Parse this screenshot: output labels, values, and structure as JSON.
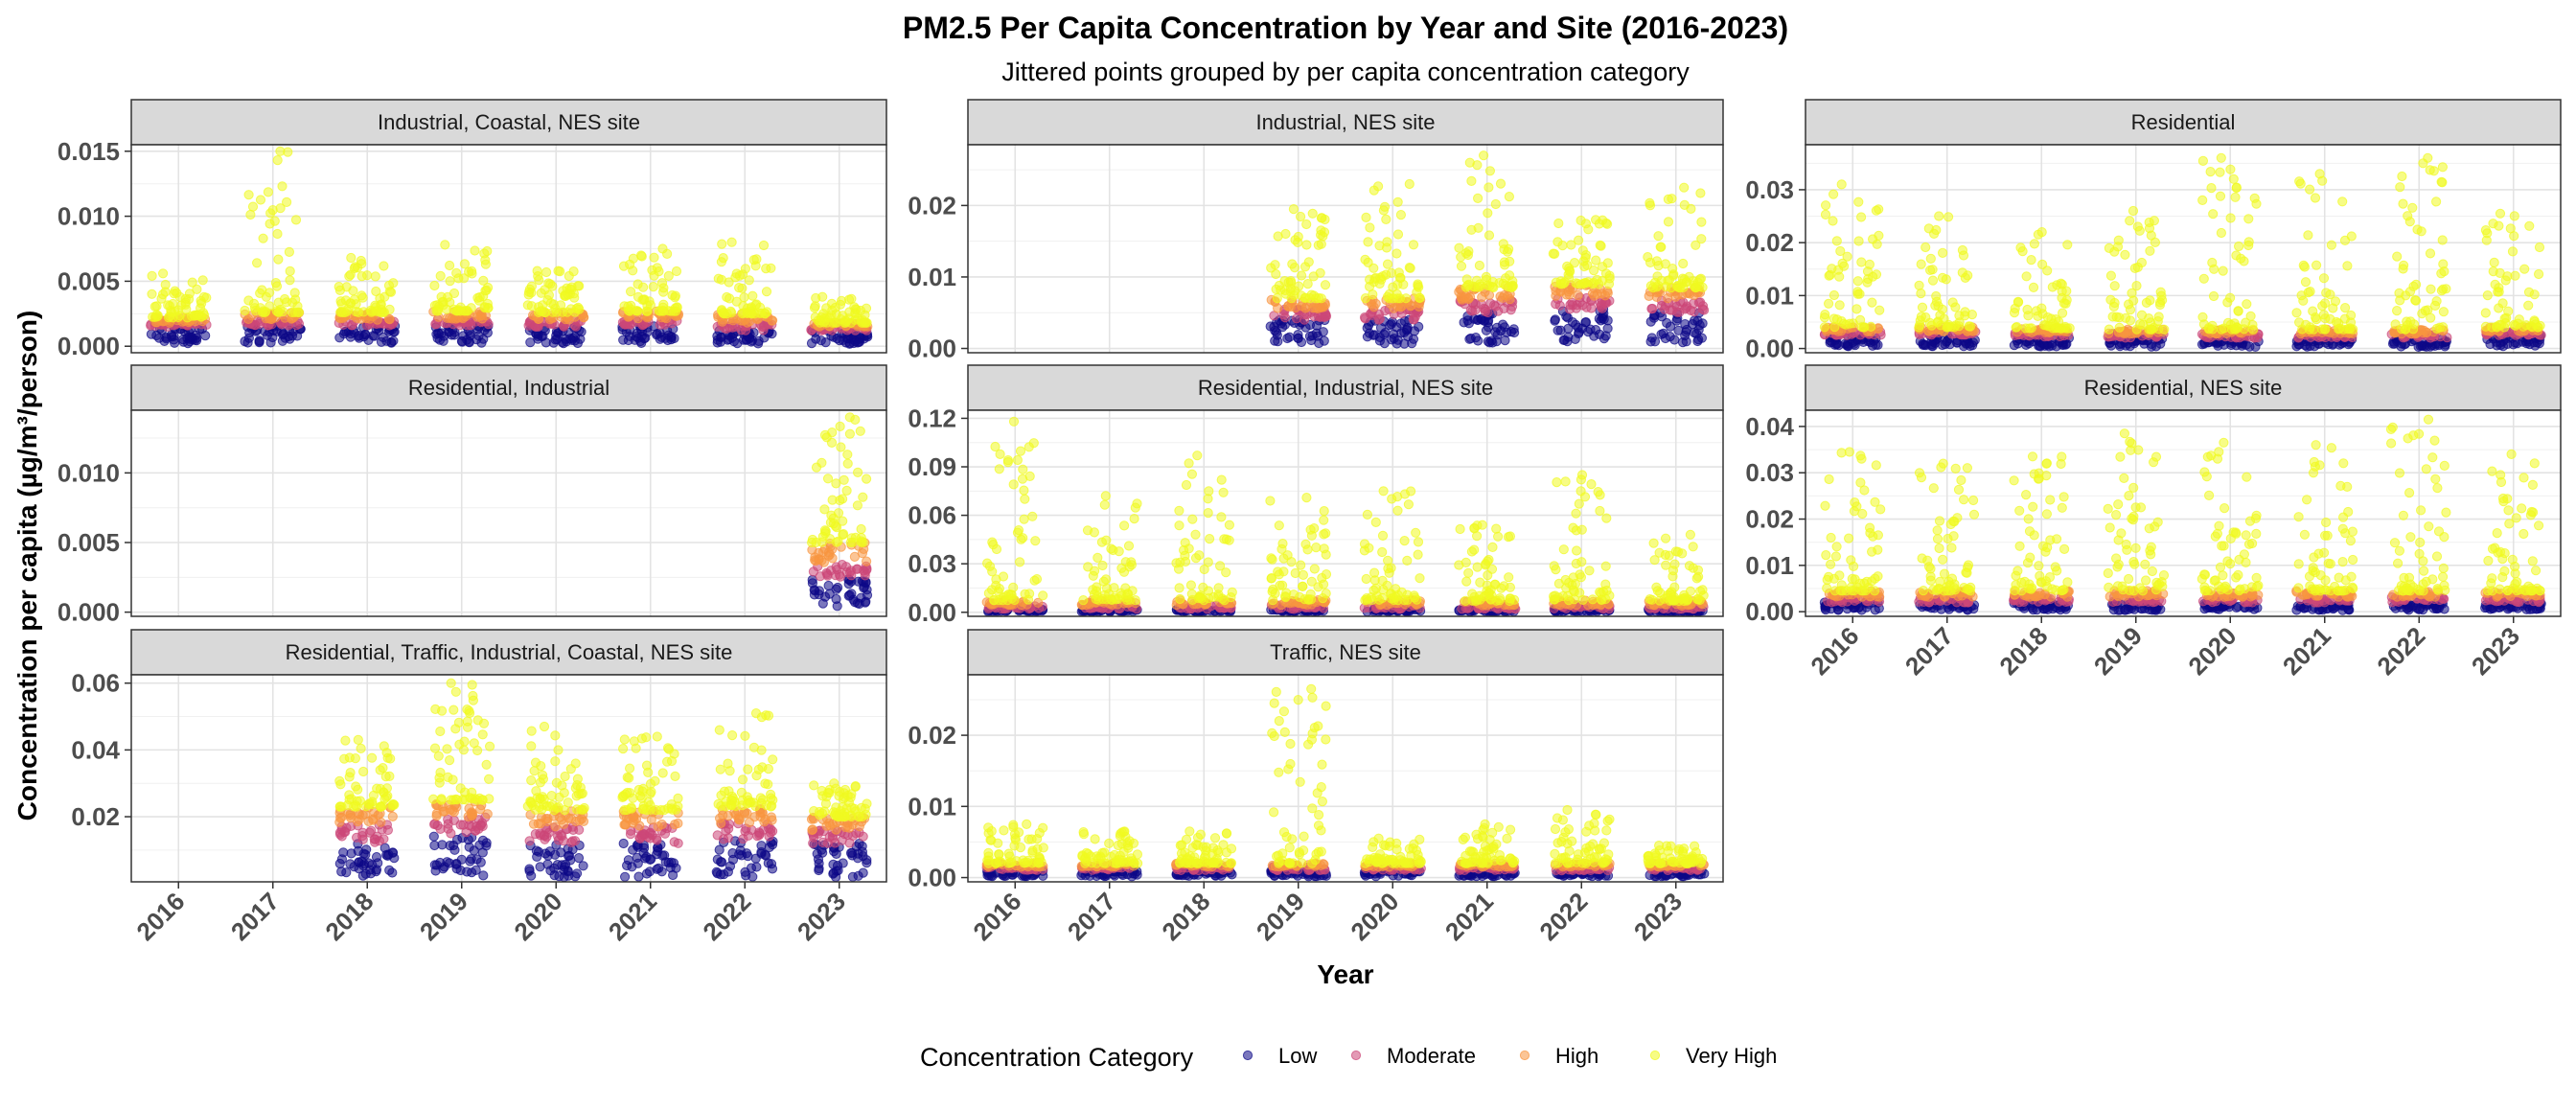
{
  "chart_data": {
    "type": "scatter",
    "title": "PM2.5 Per Capita Concentration by Year and Site (2016-2023)",
    "subtitle": "Jittered points grouped by per capita concentration category",
    "xlabel": "Year",
    "ylabel": "Concentration per capita (µg/m³/person)",
    "x_categories": [
      "2016",
      "2017",
      "2018",
      "2019",
      "2020",
      "2021",
      "2022",
      "2023"
    ],
    "grid": true,
    "legend": {
      "title": "Concentration Category",
      "position": "bottom",
      "entries": [
        {
          "name": "Low",
          "color": "#0d0887"
        },
        {
          "name": "Moderate",
          "color": "#cc4778"
        },
        {
          "name": "High",
          "color": "#f89540"
        },
        {
          "name": "Very High",
          "color": "#f0f921"
        }
      ]
    },
    "panels": [
      {
        "name": "Industrial, Coastal, NES site",
        "ylim": [
          -0.0005,
          0.0155
        ],
        "y_ticks": [
          0,
          0.005,
          0.01,
          0.015
        ],
        "y_tick_labels": [
          "0.000",
          "0.005",
          "0.010",
          "0.015"
        ],
        "x_labels_shown": false,
        "years": [
          {
            "year": "2016",
            "low": 0.0015,
            "moderate": 0.0018,
            "high": 0.0022,
            "max": 0.0056
          },
          {
            "year": "2017",
            "low": 0.0016,
            "moderate": 0.002,
            "high": 0.0026,
            "max": 0.015
          },
          {
            "year": "2018",
            "low": 0.0016,
            "moderate": 0.002,
            "high": 0.0026,
            "max": 0.0068
          },
          {
            "year": "2019",
            "low": 0.0016,
            "moderate": 0.0021,
            "high": 0.0027,
            "max": 0.0078
          },
          {
            "year": "2020",
            "low": 0.0015,
            "moderate": 0.002,
            "high": 0.0026,
            "max": 0.0058
          },
          {
            "year": "2021",
            "low": 0.0016,
            "moderate": 0.0021,
            "high": 0.0027,
            "max": 0.0075
          },
          {
            "year": "2022",
            "low": 0.0012,
            "moderate": 0.0018,
            "high": 0.0025,
            "max": 0.008
          },
          {
            "year": "2023",
            "low": 0.0012,
            "moderate": 0.0015,
            "high": 0.0018,
            "max": 0.0038
          }
        ]
      },
      {
        "name": "Industrial, NES site",
        "ylim": [
          -0.0006,
          0.0285
        ],
        "y_ticks": [
          0,
          0.01,
          0.02
        ],
        "y_tick_labels": [
          "0.00",
          "0.01",
          "0.02"
        ],
        "x_labels_shown": false,
        "years": [
          {
            "year": "2019",
            "low": 0.004,
            "moderate": 0.0055,
            "high": 0.007,
            "max": 0.0195
          },
          {
            "year": "2020",
            "low": 0.004,
            "moderate": 0.0055,
            "high": 0.007,
            "max": 0.023
          },
          {
            "year": "2021",
            "low": 0.005,
            "moderate": 0.0068,
            "high": 0.0085,
            "max": 0.027
          },
          {
            "year": "2022",
            "low": 0.0055,
            "moderate": 0.0072,
            "high": 0.009,
            "max": 0.018
          },
          {
            "year": "2023",
            "low": 0.005,
            "moderate": 0.0068,
            "high": 0.0085,
            "max": 0.0225
          }
        ]
      },
      {
        "name": "Residential",
        "ylim": [
          -0.0008,
          0.0385
        ],
        "y_ticks": [
          0,
          0.01,
          0.02,
          0.03
        ],
        "y_tick_labels": [
          "0.00",
          "0.01",
          "0.02",
          "0.03"
        ],
        "x_labels_shown": false,
        "years": [
          {
            "year": "2016",
            "low": 0.0025,
            "moderate": 0.0032,
            "high": 0.004,
            "max": 0.031
          },
          {
            "year": "2017",
            "low": 0.0025,
            "moderate": 0.0032,
            "high": 0.004,
            "max": 0.025
          },
          {
            "year": "2018",
            "low": 0.0022,
            "moderate": 0.003,
            "high": 0.0038,
            "max": 0.022
          },
          {
            "year": "2019",
            "low": 0.002,
            "moderate": 0.0028,
            "high": 0.0036,
            "max": 0.026
          },
          {
            "year": "2020",
            "low": 0.002,
            "moderate": 0.0028,
            "high": 0.0036,
            "max": 0.036
          },
          {
            "year": "2021",
            "low": 0.002,
            "moderate": 0.0028,
            "high": 0.0036,
            "max": 0.033
          },
          {
            "year": "2022",
            "low": 0.002,
            "moderate": 0.0028,
            "high": 0.0036,
            "max": 0.036
          },
          {
            "year": "2023",
            "low": 0.0025,
            "moderate": 0.0032,
            "high": 0.004,
            "max": 0.0255
          }
        ]
      },
      {
        "name": "Residential, Industrial",
        "ylim": [
          -0.0003,
          0.0145
        ],
        "y_ticks": [
          0,
          0.005,
          0.01
        ],
        "y_tick_labels": [
          "0.000",
          "0.005",
          "0.010"
        ],
        "x_labels_shown": false,
        "years": [
          {
            "year": "2023",
            "low": 0.0025,
            "moderate": 0.0035,
            "high": 0.005,
            "max": 0.014
          }
        ]
      },
      {
        "name": "Residential, Industrial, NES site",
        "ylim": [
          -0.0025,
          0.125
        ],
        "y_ticks": [
          0,
          0.03,
          0.06,
          0.09,
          0.12
        ],
        "y_tick_labels": [
          "0.00",
          "0.03",
          "0.06",
          "0.09",
          "0.12"
        ],
        "x_labels_shown": false,
        "years": [
          {
            "year": "2016",
            "low": 0.002,
            "moderate": 0.0045,
            "high": 0.0075,
            "max": 0.118
          },
          {
            "year": "2017",
            "low": 0.002,
            "moderate": 0.0045,
            "high": 0.0075,
            "max": 0.072
          },
          {
            "year": "2018",
            "low": 0.002,
            "moderate": 0.0045,
            "high": 0.0075,
            "max": 0.097
          },
          {
            "year": "2019",
            "low": 0.002,
            "moderate": 0.0045,
            "high": 0.0075,
            "max": 0.071
          },
          {
            "year": "2020",
            "low": 0.002,
            "moderate": 0.0045,
            "high": 0.0075,
            "max": 0.075
          },
          {
            "year": "2021",
            "low": 0.002,
            "moderate": 0.004,
            "high": 0.007,
            "max": 0.054
          },
          {
            "year": "2022",
            "low": 0.002,
            "moderate": 0.0045,
            "high": 0.0075,
            "max": 0.085
          },
          {
            "year": "2023",
            "low": 0.002,
            "moderate": 0.004,
            "high": 0.007,
            "max": 0.048
          }
        ]
      },
      {
        "name": "Residential, NES site",
        "ylim": [
          -0.001,
          0.0435
        ],
        "y_ticks": [
          0,
          0.01,
          0.02,
          0.03,
          0.04
        ],
        "y_tick_labels": [
          "0.00",
          "0.01",
          "0.02",
          "0.03",
          "0.04"
        ],
        "x_labels_shown": true,
        "years": [
          {
            "year": "2016",
            "low": 0.002,
            "moderate": 0.0032,
            "high": 0.0045,
            "max": 0.0345
          },
          {
            "year": "2017",
            "low": 0.002,
            "moderate": 0.0032,
            "high": 0.0045,
            "max": 0.032
          },
          {
            "year": "2018",
            "low": 0.002,
            "moderate": 0.0032,
            "high": 0.0045,
            "max": 0.0335
          },
          {
            "year": "2019",
            "low": 0.002,
            "moderate": 0.0032,
            "high": 0.0045,
            "max": 0.0385
          },
          {
            "year": "2020",
            "low": 0.002,
            "moderate": 0.0032,
            "high": 0.0045,
            "max": 0.0365
          },
          {
            "year": "2021",
            "low": 0.002,
            "moderate": 0.0032,
            "high": 0.0045,
            "max": 0.036
          },
          {
            "year": "2022",
            "low": 0.002,
            "moderate": 0.0032,
            "high": 0.0045,
            "max": 0.0415
          },
          {
            "year": "2023",
            "low": 0.002,
            "moderate": 0.0032,
            "high": 0.0045,
            "max": 0.034
          }
        ]
      },
      {
        "name": "Residential, Traffic, Industrial, Coastal, NES site",
        "ylim": [
          0.0005,
          0.0625
        ],
        "y_ticks": [
          0.02,
          0.04,
          0.06
        ],
        "y_tick_labels": [
          "0.02",
          "0.04",
          "0.06"
        ],
        "x_labels_shown": true,
        "years": [
          {
            "year": "2018",
            "low": 0.012,
            "moderate": 0.018,
            "high": 0.023,
            "max": 0.043
          },
          {
            "year": "2019",
            "low": 0.015,
            "moderate": 0.02,
            "high": 0.025,
            "max": 0.06
          },
          {
            "year": "2020",
            "low": 0.012,
            "moderate": 0.017,
            "high": 0.022,
            "max": 0.047
          },
          {
            "year": "2021",
            "low": 0.012,
            "moderate": 0.017,
            "high": 0.022,
            "max": 0.044
          },
          {
            "year": "2022",
            "low": 0.013,
            "moderate": 0.018,
            "high": 0.023,
            "max": 0.051
          },
          {
            "year": "2023",
            "low": 0.012,
            "moderate": 0.016,
            "high": 0.02,
            "max": 0.03
          }
        ]
      },
      {
        "name": "Traffic, NES site",
        "ylim": [
          -0.0006,
          0.0285
        ],
        "y_ticks": [
          0,
          0.01,
          0.02
        ],
        "y_tick_labels": [
          "0.00",
          "0.01",
          "0.02"
        ],
        "x_labels_shown": true,
        "years": [
          {
            "year": "2016",
            "low": 0.001,
            "moderate": 0.0015,
            "high": 0.002,
            "max": 0.0075
          },
          {
            "year": "2017",
            "low": 0.001,
            "moderate": 0.0015,
            "high": 0.002,
            "max": 0.0065
          },
          {
            "year": "2018",
            "low": 0.001,
            "moderate": 0.0015,
            "high": 0.002,
            "max": 0.0065
          },
          {
            "year": "2019",
            "low": 0.001,
            "moderate": 0.0015,
            "high": 0.002,
            "max": 0.0265
          },
          {
            "year": "2020",
            "low": 0.001,
            "moderate": 0.0015,
            "high": 0.002,
            "max": 0.0055
          },
          {
            "year": "2021",
            "low": 0.001,
            "moderate": 0.0015,
            "high": 0.002,
            "max": 0.0075
          },
          {
            "year": "2022",
            "low": 0.001,
            "moderate": 0.0015,
            "high": 0.002,
            "max": 0.0095
          },
          {
            "year": "2023",
            "low": 0.001,
            "moderate": 0.0015,
            "high": 0.002,
            "max": 0.0045
          }
        ]
      }
    ]
  }
}
